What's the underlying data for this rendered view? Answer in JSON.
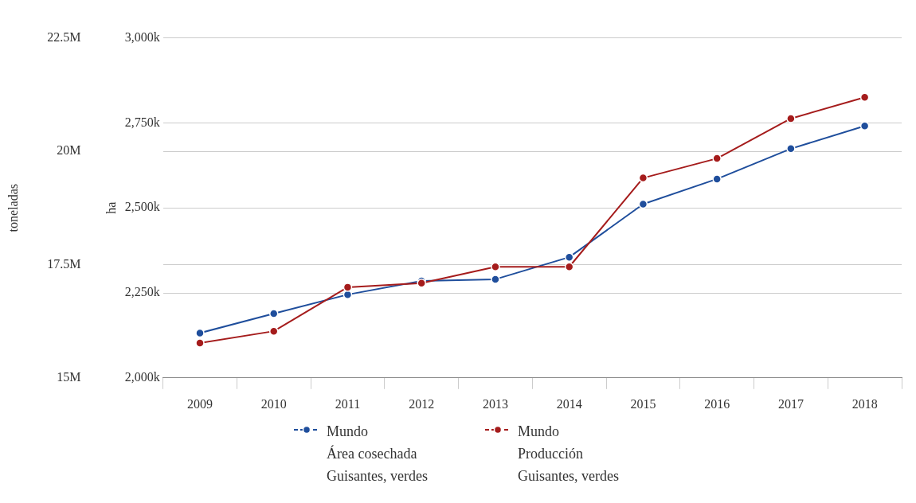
{
  "chart_data": {
    "type": "line",
    "ylabel": "ha",
    "y2label": "toneladas",
    "categories": [
      "2009",
      "2010",
      "2011",
      "2012",
      "2013",
      "2014",
      "2015",
      "2016",
      "2017",
      "2018"
    ],
    "series": [
      {
        "name": "Mundo\nÁrea cosechada\nGuisantes, verdes",
        "color": "#1f4e9c",
        "values": [
          2132000,
          2189000,
          2245000,
          2285000,
          2290000,
          2355000,
          2511000,
          2585000,
          2674000,
          2741000
        ]
      },
      {
        "name": "Mundo\nProducción\nGuisantes, verdes",
        "color": "#a51c1c",
        "axis": "y2",
        "values": [
          15770000,
          16030000,
          17000000,
          17090000,
          17450000,
          17450000,
          19410000,
          19840000,
          20720000,
          21190000
        ]
      }
    ],
    "ylim": [
      2000000,
      3000000
    ],
    "yticks": [
      {
        "value": 2000000,
        "label": "2,000k"
      },
      {
        "value": 2250000,
        "label": "2,250k"
      },
      {
        "value": 2500000,
        "label": "2,500k"
      },
      {
        "value": 2750000,
        "label": "2,750k"
      },
      {
        "value": 3000000,
        "label": "3,000k"
      }
    ],
    "y2lim": [
      15000000,
      22500000
    ],
    "y2ticks": [
      {
        "value": 15000000,
        "label": "15M"
      },
      {
        "value": 17500000,
        "label": "17.5M"
      },
      {
        "value": 20000000,
        "label": "20M"
      },
      {
        "value": 22500000,
        "label": "22.5M"
      }
    ],
    "grid": "y",
    "legend": "bottom",
    "marker": "circle",
    "line_style": "solid"
  }
}
